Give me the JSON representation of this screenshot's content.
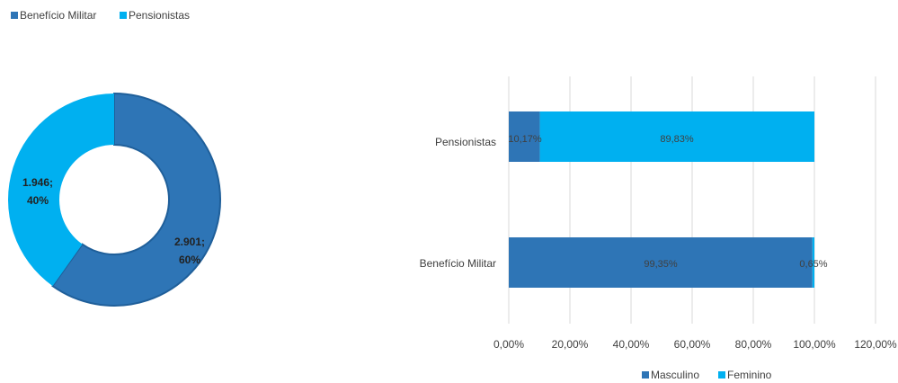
{
  "colors": {
    "beneficio_militar": "#2E75B6",
    "pensionistas": "#00B0F0",
    "masculino": "#2E75B6",
    "feminino": "#00B0F0",
    "grid": "#D9D9D9",
    "text": "#404040"
  },
  "chart_data": [
    {
      "type": "pie",
      "donut": true,
      "title": "",
      "legend": {
        "position": "top-left",
        "entries": [
          "Benefício Militar",
          "Pensionistas"
        ]
      },
      "slices": [
        {
          "label": "Benefício Militar",
          "value": 2901,
          "percent": 60,
          "data_label_line1": "2.901;",
          "data_label_line2": "60%"
        },
        {
          "label": "Pensionistas",
          "value": 1946,
          "percent": 40,
          "data_label_line1": "1.946;",
          "data_label_line2": "40%"
        }
      ]
    },
    {
      "type": "bar",
      "orientation": "horizontal",
      "stacked": true,
      "title": "",
      "categories": [
        "Pensionistas",
        "Benefício Militar"
      ],
      "series": [
        {
          "name": "Masculino",
          "values": [
            10.17,
            99.35
          ],
          "labels": [
            "10,17%",
            "99,35%"
          ]
        },
        {
          "name": "Feminino",
          "values": [
            89.83,
            0.65
          ],
          "labels": [
            "89,83%",
            "0,65%"
          ]
        }
      ],
      "xlim": [
        0,
        120
      ],
      "x_ticks": [
        "0,00%",
        "20,00%",
        "40,00%",
        "60,00%",
        "80,00%",
        "100,00%",
        "120,00%"
      ],
      "grid": true,
      "legend": {
        "position": "bottom",
        "entries": [
          "Masculino",
          "Feminino"
        ]
      }
    }
  ]
}
